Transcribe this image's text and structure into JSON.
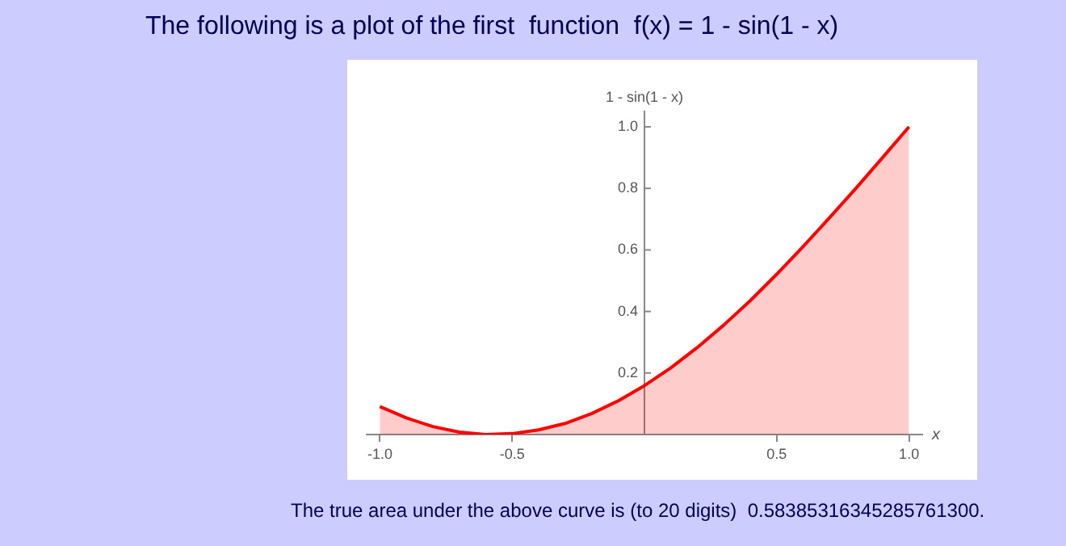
{
  "chart_data": {
    "type": "area",
    "title": "The following is a plot of the first  function  f(x) = 1 - sin(1 - x)",
    "xlabel": "x",
    "ylabel": "1 - sin(1 - x)",
    "x": [
      -1,
      -0.9,
      -0.8,
      -0.7,
      -0.6,
      -0.5,
      -0.4,
      -0.3,
      -0.2,
      -0.1,
      0,
      0.1,
      0.2,
      0.3,
      0.4,
      0.5,
      0.6,
      0.7,
      0.8,
      0.9,
      1
    ],
    "series": [
      {
        "color": "#ff0000",
        "values": [
          0.091,
          0.054,
          0.026,
          0.008,
          0.0,
          0.003,
          0.015,
          0.036,
          0.068,
          0.109,
          0.159,
          0.217,
          0.283,
          0.356,
          0.435,
          0.521,
          0.611,
          0.705,
          0.801,
          0.9,
          1.0
        ]
      }
    ],
    "xlim": [
      -1.05,
      1.05
    ],
    "ylim": [
      0,
      1.05
    ],
    "xticks": [
      {
        "value": -1,
        "label": "-1.0"
      },
      -0.5,
      0.5,
      {
        "value": 1,
        "label": "1.0"
      }
    ],
    "yticks": [
      0.2,
      0.4,
      0.6,
      0.8,
      {
        "value": 1,
        "label": "1.0"
      }
    ],
    "marker": "none",
    "annotations": [
      "The true area under the above curve is (to 20 digits)  0.58385316345285761300."
    ]
  }
}
